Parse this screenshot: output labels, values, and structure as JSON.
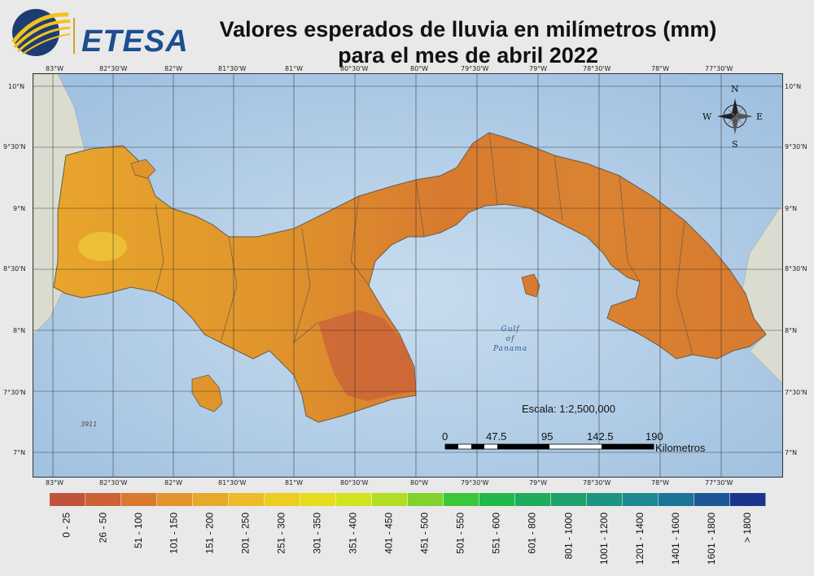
{
  "header": {
    "logo_text": "ETESA",
    "title_line1": "Valores esperados de lluvia en milímetros (mm)",
    "title_line2": "para el mes de abril 2022"
  },
  "map": {
    "lon_labels": [
      "83°W",
      "82°30'W",
      "82°W",
      "81°30'W",
      "81°W",
      "80°30'W",
      "80°W",
      "79°30'W",
      "79°W",
      "78°30'W",
      "78°W",
      "77°30'W"
    ],
    "lat_labels": [
      "10°N",
      "9°30'N",
      "9°N",
      "8°30'N",
      "8°N",
      "7°30'N",
      "7°N"
    ],
    "sea_label": [
      "Gulf",
      "of",
      "Panama"
    ],
    "corner_label": "3911",
    "compass": {
      "n": "N",
      "s": "S",
      "e": "E",
      "w": "W"
    },
    "scale": {
      "text": "Escala: 1:2,500,000",
      "ticks": [
        "0",
        "47.5",
        "95",
        "142.5",
        "190"
      ],
      "unit": "Kilometros"
    }
  },
  "legend": {
    "classes": [
      {
        "label": "0 - 25",
        "color": "#c0533b"
      },
      {
        "label": "26 - 50",
        "color": "#cc6236"
      },
      {
        "label": "51 - 100",
        "color": "#d87a30"
      },
      {
        "label": "101 - 150",
        "color": "#e0952c"
      },
      {
        "label": "151 - 200",
        "color": "#e6a92a"
      },
      {
        "label": "201 - 250",
        "color": "#ebbc27"
      },
      {
        "label": "251 - 300",
        "color": "#eccd22"
      },
      {
        "label": "301 - 350",
        "color": "#e6dc1d"
      },
      {
        "label": "351 - 400",
        "color": "#d2e21c"
      },
      {
        "label": "401 - 450",
        "color": "#b0de22"
      },
      {
        "label": "451 - 500",
        "color": "#7fd32c"
      },
      {
        "label": "501 - 550",
        "color": "#3cc63a"
      },
      {
        "label": "551 - 600",
        "color": "#22b84b"
      },
      {
        "label": "601 - 800",
        "color": "#1fac5c"
      },
      {
        "label": "801 - 1000",
        "color": "#1fa06d"
      },
      {
        "label": "1001 - 1200",
        "color": "#1d9580"
      },
      {
        "label": "1201 - 1400",
        "color": "#1d8990"
      },
      {
        "label": "1401 - 1600",
        "color": "#1c7497"
      },
      {
        "label": "1601 - 1800",
        "color": "#1c5895"
      },
      {
        "label": "> 1800",
        "color": "#1a358c"
      }
    ]
  }
}
